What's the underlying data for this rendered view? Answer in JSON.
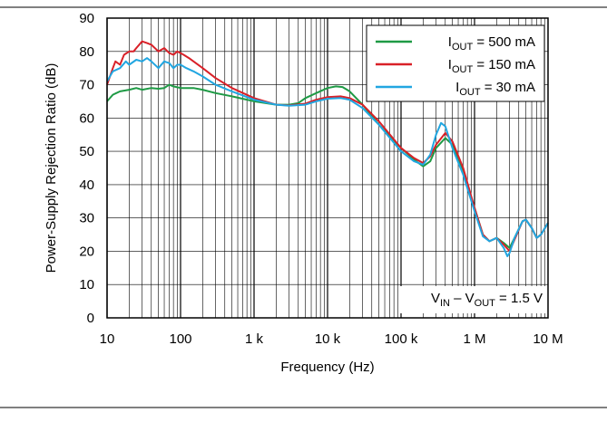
{
  "chart_data": {
    "type": "line",
    "title": "",
    "xlabel": "Frequency (Hz)",
    "ylabel": "Power-Supply Rejection Ratio (dB)",
    "xscale": "log",
    "xlim": [
      10,
      10000000
    ],
    "ylim": [
      0,
      90
    ],
    "grid": true,
    "x_ticks": [
      10,
      100,
      1000,
      10000,
      100000,
      1000000,
      10000000
    ],
    "x_tick_labels": [
      "10",
      "100",
      "1 k",
      "10 k",
      "100 k",
      "1 M",
      "10 M"
    ],
    "y_ticks": [
      0,
      10,
      20,
      30,
      40,
      50,
      60,
      70,
      80,
      90
    ],
    "y_tick_labels": [
      "0",
      "10",
      "20",
      "30",
      "40",
      "50",
      "60",
      "70",
      "80",
      "90"
    ],
    "legend_position": "top-right",
    "annotation": {
      "main": "V",
      "sub1": "IN",
      "mid": " – V",
      "sub2": "OUT",
      "tail": " = 1.5 V"
    },
    "series": [
      {
        "legend": {
          "main": "I",
          "sub": "OUT",
          "tail": " = 500 mA"
        },
        "color": "#1e9a45",
        "points": [
          [
            10,
            65
          ],
          [
            12,
            67
          ],
          [
            15,
            68
          ],
          [
            20,
            68.5
          ],
          [
            25,
            69
          ],
          [
            30,
            68.5
          ],
          [
            40,
            69
          ],
          [
            50,
            68.8
          ],
          [
            60,
            69
          ],
          [
            70,
            70
          ],
          [
            80,
            69.5
          ],
          [
            100,
            69
          ],
          [
            150,
            69
          ],
          [
            200,
            68.5
          ],
          [
            300,
            67.5
          ],
          [
            500,
            66.5
          ],
          [
            1000,
            65
          ],
          [
            2000,
            64
          ],
          [
            3000,
            64
          ],
          [
            4000,
            64.5
          ],
          [
            5000,
            66
          ],
          [
            7000,
            67.5
          ],
          [
            10000,
            69
          ],
          [
            13000,
            69.5
          ],
          [
            16000,
            69.3
          ],
          [
            20000,
            68
          ],
          [
            30000,
            64
          ],
          [
            50000,
            58
          ],
          [
            100000,
            51
          ],
          [
            150000,
            47.5
          ],
          [
            200000,
            45.5
          ],
          [
            250000,
            47
          ],
          [
            300000,
            51
          ],
          [
            400000,
            54
          ],
          [
            500000,
            52
          ],
          [
            700000,
            44
          ],
          [
            1000000,
            33
          ],
          [
            1300000,
            25
          ],
          [
            1600000,
            23
          ],
          [
            2000000,
            24
          ],
          [
            2500000,
            22.5
          ],
          [
            3000000,
            21
          ],
          [
            3500000,
            24
          ],
          [
            4500000,
            29
          ],
          [
            5000000,
            29.5
          ],
          [
            6000000,
            27
          ],
          [
            7000000,
            24
          ],
          [
            8000000,
            25
          ],
          [
            10000000,
            28.5
          ]
        ]
      },
      {
        "legend": {
          "main": "I",
          "sub": "OUT",
          "tail": " = 150 mA"
        },
        "color": "#d92028",
        "points": [
          [
            10,
            70
          ],
          [
            12,
            75
          ],
          [
            13,
            77
          ],
          [
            15,
            76
          ],
          [
            17,
            79
          ],
          [
            20,
            80
          ],
          [
            23,
            80
          ],
          [
            25,
            81
          ],
          [
            30,
            83
          ],
          [
            35,
            82.5
          ],
          [
            40,
            82
          ],
          [
            50,
            80
          ],
          [
            60,
            81
          ],
          [
            70,
            79.5
          ],
          [
            80,
            79
          ],
          [
            90,
            80
          ],
          [
            100,
            79.5
          ],
          [
            110,
            79
          ],
          [
            130,
            78
          ],
          [
            150,
            77
          ],
          [
            200,
            75
          ],
          [
            300,
            72
          ],
          [
            500,
            69
          ],
          [
            1000,
            66
          ],
          [
            2000,
            64
          ],
          [
            3000,
            63.8
          ],
          [
            5000,
            64.3
          ],
          [
            7000,
            65.5
          ],
          [
            10000,
            66.3
          ],
          [
            15000,
            66.5
          ],
          [
            20000,
            66
          ],
          [
            30000,
            64
          ],
          [
            50000,
            59
          ],
          [
            100000,
            51
          ],
          [
            150000,
            48
          ],
          [
            200000,
            46.5
          ],
          [
            250000,
            48.5
          ],
          [
            300000,
            52
          ],
          [
            400000,
            55.5
          ],
          [
            500000,
            53
          ],
          [
            700000,
            45
          ],
          [
            1000000,
            33
          ],
          [
            1300000,
            25
          ],
          [
            1600000,
            23
          ],
          [
            2000000,
            24
          ],
          [
            2500000,
            22
          ],
          [
            3000000,
            20
          ],
          [
            3500000,
            23.5
          ],
          [
            4500000,
            29
          ],
          [
            5000000,
            29.5
          ],
          [
            6000000,
            27
          ],
          [
            7000000,
            24
          ],
          [
            8000000,
            25
          ],
          [
            10000000,
            28.5
          ]
        ]
      },
      {
        "legend": {
          "main": "I",
          "sub": "OUT",
          "tail": " = 30 mA"
        },
        "color": "#21a6e1",
        "points": [
          [
            10,
            71
          ],
          [
            12,
            74
          ],
          [
            15,
            75
          ],
          [
            18,
            77
          ],
          [
            20,
            76
          ],
          [
            25,
            77.5
          ],
          [
            30,
            77
          ],
          [
            35,
            78
          ],
          [
            40,
            77
          ],
          [
            50,
            75
          ],
          [
            60,
            77
          ],
          [
            70,
            76.5
          ],
          [
            80,
            75
          ],
          [
            90,
            76
          ],
          [
            100,
            76
          ],
          [
            120,
            75
          ],
          [
            150,
            74
          ],
          [
            200,
            72.5
          ],
          [
            300,
            70
          ],
          [
            500,
            68
          ],
          [
            1000,
            65.5
          ],
          [
            2000,
            64
          ],
          [
            3000,
            63.7
          ],
          [
            5000,
            64
          ],
          [
            7000,
            65
          ],
          [
            10000,
            65.8
          ],
          [
            15000,
            66
          ],
          [
            20000,
            65.5
          ],
          [
            30000,
            63
          ],
          [
            50000,
            58
          ],
          [
            100000,
            50
          ],
          [
            150000,
            47
          ],
          [
            200000,
            46
          ],
          [
            250000,
            49
          ],
          [
            300000,
            55
          ],
          [
            350000,
            58.5
          ],
          [
            400000,
            57.5
          ],
          [
            500000,
            51
          ],
          [
            700000,
            43
          ],
          [
            1000000,
            32
          ],
          [
            1300000,
            24.5
          ],
          [
            1600000,
            23
          ],
          [
            2000000,
            24
          ],
          [
            2500000,
            21
          ],
          [
            2800000,
            18.5
          ],
          [
            3000000,
            19.5
          ],
          [
            3500000,
            24
          ],
          [
            4500000,
            29
          ],
          [
            5000000,
            29.5
          ],
          [
            6000000,
            27
          ],
          [
            7000000,
            24
          ],
          [
            8000000,
            25
          ],
          [
            10000000,
            28.5
          ]
        ]
      }
    ]
  }
}
